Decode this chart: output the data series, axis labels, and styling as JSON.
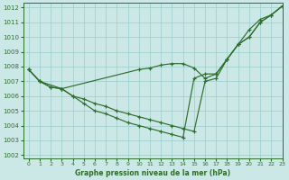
{
  "xlabel": "Graphe pression niveau de la mer (hPa)",
  "background_color": "#cce8e6",
  "grid_color": "#99cccc",
  "line_color": "#2d6e2d",
  "xlim": [
    -0.5,
    23
  ],
  "ylim": [
    1001.8,
    1012.3
  ],
  "yticks": [
    1002,
    1003,
    1004,
    1005,
    1006,
    1007,
    1008,
    1009,
    1010,
    1011,
    1012
  ],
  "xticks": [
    0,
    1,
    2,
    3,
    4,
    5,
    6,
    7,
    8,
    9,
    10,
    11,
    12,
    13,
    14,
    15,
    16,
    17,
    18,
    19,
    20,
    21,
    22,
    23
  ],
  "series1_x": [
    0,
    1,
    2,
    3,
    4,
    5,
    6,
    7,
    8,
    9,
    10,
    11,
    12,
    13,
    14,
    15,
    16,
    17,
    18,
    19,
    20,
    21,
    22,
    23
  ],
  "series1_y": [
    1007.8,
    1007.0,
    1006.6,
    1006.5,
    1006.0,
    1005.5,
    1005.0,
    1004.8,
    1004.5,
    1004.2,
    1004.0,
    1003.8,
    1003.6,
    1003.4,
    1003.2,
    1007.2,
    1007.5,
    1007.5,
    1008.5,
    1009.5,
    1010.5,
    1011.2,
    1011.5,
    1012.1
  ],
  "series2_x": [
    0,
    1,
    2,
    3,
    4,
    5,
    6,
    7,
    8,
    9,
    10,
    11,
    12,
    13,
    14,
    15,
    16,
    17,
    18,
    19,
    20,
    21,
    22,
    23
  ],
  "series2_y": [
    1007.8,
    1007.0,
    1006.6,
    1006.5,
    1006.0,
    1005.8,
    1005.5,
    1005.3,
    1005.0,
    1004.8,
    1004.6,
    1004.4,
    1004.2,
    1004.0,
    1003.8,
    1003.6,
    1007.0,
    1007.2,
    1008.5,
    1009.5,
    1010.0,
    1011.0,
    1011.5,
    1012.1
  ],
  "series3_x": [
    0,
    1,
    3,
    10,
    11,
    12,
    13,
    14,
    15,
    16,
    17,
    18,
    19,
    20,
    21,
    22,
    23
  ],
  "series3_y": [
    1007.8,
    1007.0,
    1006.5,
    1007.8,
    1007.9,
    1008.1,
    1008.2,
    1008.2,
    1007.9,
    1007.2,
    1007.5,
    1008.5,
    1009.5,
    1010.0,
    1011.0,
    1011.5,
    1012.1
  ]
}
